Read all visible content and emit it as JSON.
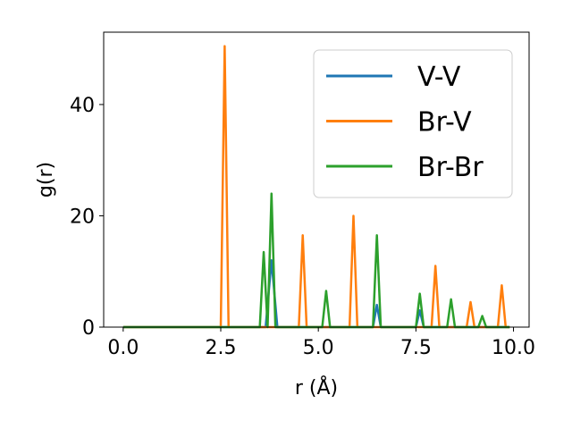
{
  "chart_data": {
    "type": "line",
    "xlabel": "r (Å)",
    "ylabel": "g(r)",
    "xlim": [
      -0.5,
      10.4
    ],
    "ylim": [
      0,
      53
    ],
    "xticks": [
      0.0,
      2.5,
      5.0,
      7.5,
      10.0
    ],
    "xtick_labels": [
      "0.0",
      "2.5",
      "5.0",
      "7.5",
      "10.0"
    ],
    "yticks": [
      0,
      20,
      40
    ],
    "ytick_labels": [
      "0",
      "20",
      "40"
    ],
    "grid": false,
    "legend_position": "top-right",
    "series": [
      {
        "name": "V-V",
        "color": "#1f77b4",
        "x": [
          0.0,
          3.65,
          3.8,
          3.95,
          6.4,
          6.5,
          6.6,
          7.5,
          7.6,
          7.7,
          9.9
        ],
        "y": [
          0,
          0,
          12,
          0,
          0,
          4,
          0,
          0,
          3,
          0,
          0
        ]
      },
      {
        "name": "Br-V",
        "color": "#ff7f0e",
        "x": [
          0.0,
          2.5,
          2.6,
          2.7,
          4.5,
          4.6,
          4.7,
          5.8,
          5.9,
          6.0,
          7.9,
          8.0,
          8.1,
          8.8,
          8.9,
          9.0,
          9.6,
          9.7,
          9.8,
          9.9
        ],
        "y": [
          0,
          0,
          50.5,
          0,
          0,
          16.5,
          0,
          0,
          20,
          0,
          0,
          11,
          0,
          0,
          4.5,
          0,
          0,
          7.5,
          0,
          0
        ]
      },
      {
        "name": "Br-Br",
        "color": "#2ca02c",
        "x": [
          0.0,
          3.5,
          3.6,
          3.7,
          3.8,
          3.9,
          5.1,
          5.2,
          5.3,
          6.4,
          6.5,
          6.6,
          7.5,
          7.6,
          7.7,
          8.3,
          8.4,
          8.5,
          9.1,
          9.2,
          9.3,
          9.9
        ],
        "y": [
          0,
          0,
          13.5,
          0,
          24,
          0,
          0,
          6.5,
          0,
          0,
          16.5,
          0,
          0,
          6,
          0,
          0,
          5,
          0,
          0,
          2,
          0,
          0
        ]
      }
    ]
  }
}
